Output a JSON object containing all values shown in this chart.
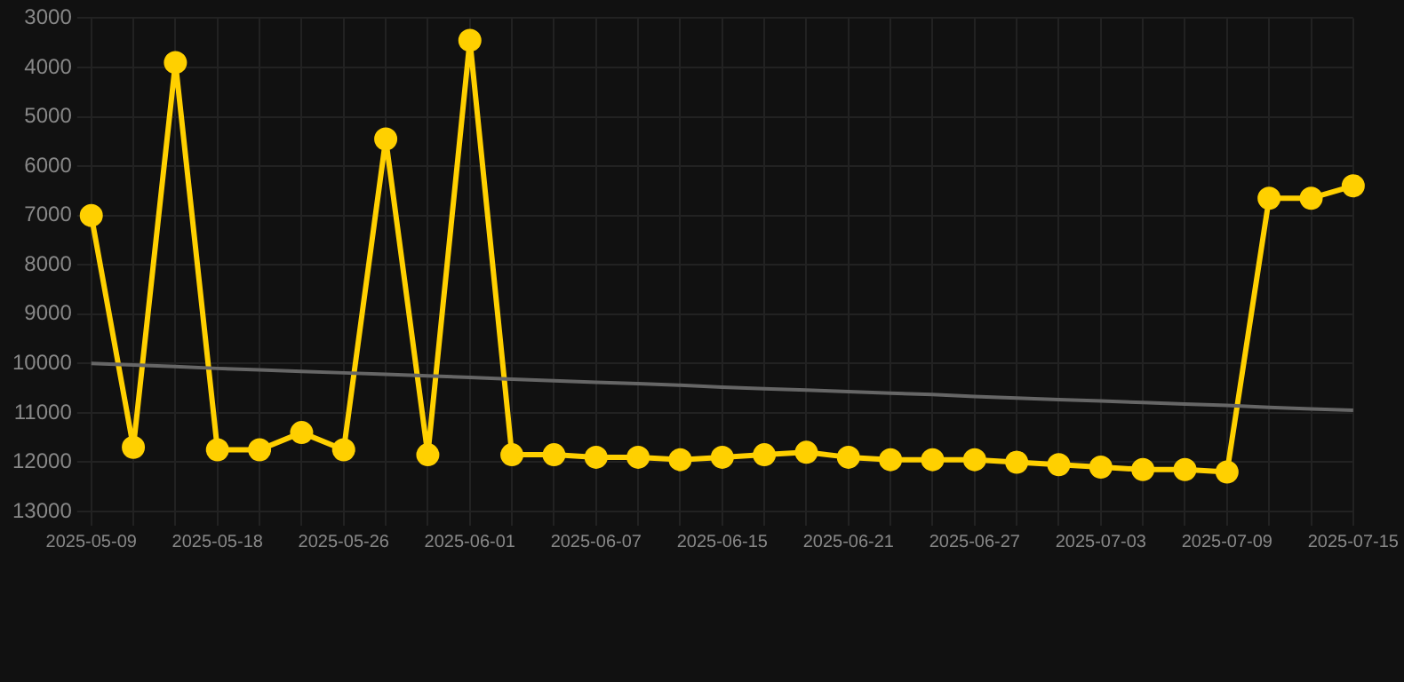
{
  "chart_data": {
    "type": "line",
    "categories": [
      "2025-05-09",
      null,
      null,
      "2025-05-18",
      null,
      null,
      "2025-05-26",
      null,
      null,
      "2025-06-01",
      null,
      null,
      "2025-06-07",
      null,
      null,
      "2025-06-15",
      null,
      null,
      "2025-06-21",
      null,
      null,
      "2025-06-27",
      null,
      null,
      "2025-07-03",
      null,
      null,
      "2025-07-09",
      null,
      null,
      "2025-07-15"
    ],
    "series": [
      {
        "color": "#ffd000",
        "marker": "circle",
        "values": [
          7000,
          11700,
          3900,
          11750,
          11750,
          11400,
          11750,
          5450,
          11850,
          3450,
          11850,
          11850,
          11900,
          11900,
          11950,
          11900,
          11850,
          11800,
          11900,
          11950,
          11950,
          11950,
          12000,
          12050,
          12100,
          12150,
          12150,
          12200,
          6650,
          6650,
          6400
        ]
      },
      {
        "type": "line",
        "color": "#666666",
        "marker": "none",
        "values": [
          10000,
          10030,
          10060,
          10100,
          10130,
          10160,
          10190,
          10220,
          10250,
          10280,
          10320,
          10350,
          10380,
          10410,
          10440,
          10480,
          10510,
          10540,
          10570,
          10600,
          10630,
          10670,
          10700,
          10730,
          10760,
          10790,
          10820,
          10850,
          10890,
          10920,
          10950
        ]
      }
    ],
    "ylim": [
      13000,
      3000
    ],
    "yticks": [
      3000,
      4000,
      5000,
      6000,
      7000,
      8000,
      9000,
      10000,
      11000,
      12000,
      13000
    ],
    "grid": true,
    "legend": false,
    "line_style": "solid"
  }
}
